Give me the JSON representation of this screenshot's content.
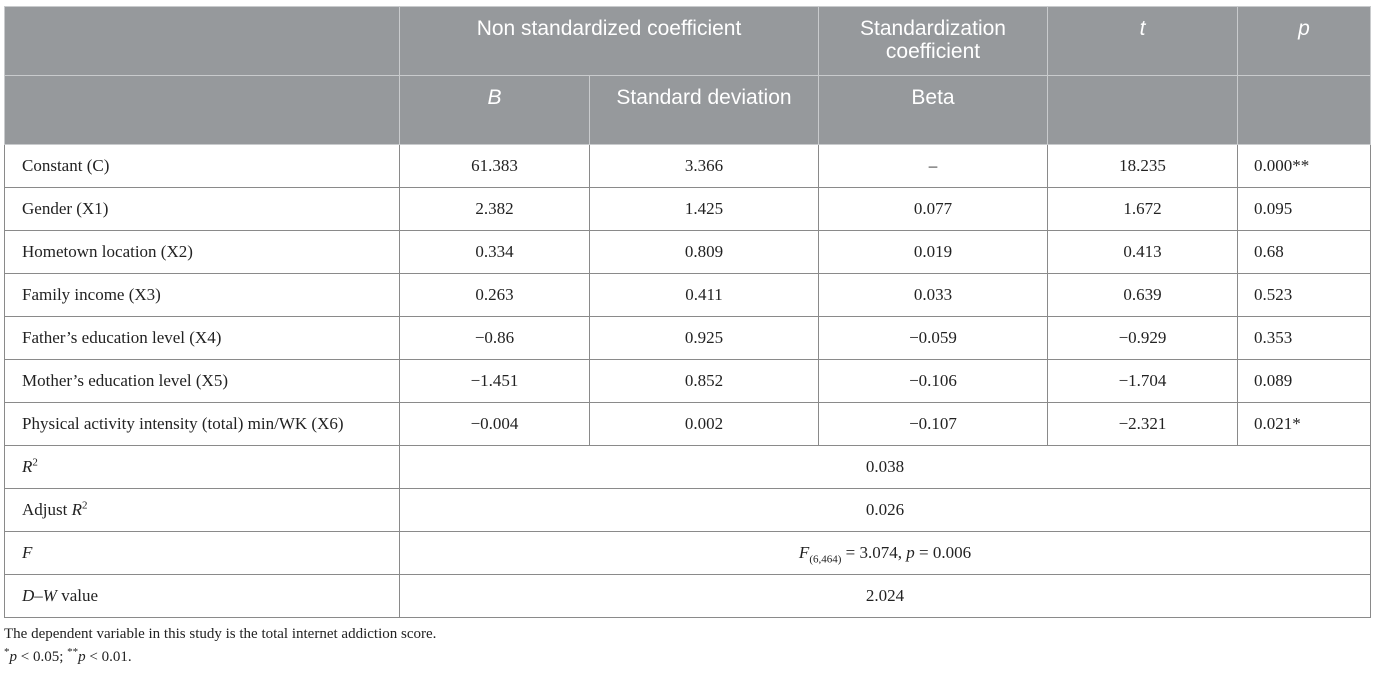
{
  "table": {
    "header": {
      "group1": "Non standardized coefficient",
      "group2": "Standardization coefficient",
      "t": "t",
      "p": "p",
      "b": "B",
      "std_dev": "Standard deviation",
      "beta": "Beta"
    },
    "rows": [
      {
        "label": "Constant (C)",
        "b": "61.383",
        "sd": "3.366",
        "beta": "–",
        "t": "18.235",
        "p": "0.000**"
      },
      {
        "label": "Gender (X1)",
        "b": "2.382",
        "sd": "1.425",
        "beta": "0.077",
        "t": "1.672",
        "p": "0.095"
      },
      {
        "label": "Hometown location (X2)",
        "b": "0.334",
        "sd": "0.809",
        "beta": "0.019",
        "t": "0.413",
        "p": "0.68"
      },
      {
        "label": "Family income (X3)",
        "b": "0.263",
        "sd": "0.411",
        "beta": "0.033",
        "t": "0.639",
        "p": "0.523"
      },
      {
        "label": "Father’s education level (X4)",
        "b": "−0.86",
        "sd": "0.925",
        "beta": "−0.059",
        "t": "−0.929",
        "p": "0.353"
      },
      {
        "label": "Mother’s education level (X5)",
        "b": "−1.451",
        "sd": "0.852",
        "beta": "−0.106",
        "t": "−1.704",
        "p": "0.089"
      },
      {
        "label": "Physical activity intensity (total) min/WK (X6)",
        "b": "−0.004",
        "sd": "0.002",
        "beta": "−0.107",
        "t": "−2.321",
        "p": "0.021*"
      }
    ],
    "summary": {
      "r2_label": "R",
      "r2_sup": "2",
      "r2_value": "0.038",
      "adj_label_prefix": "Adjust ",
      "adj_label_r": "R",
      "adj_label_sup": "2",
      "adj_value": "0.026",
      "f_label": "F",
      "f_value_f": "F",
      "f_value_sub": "(6,464)",
      "f_value_mid": " = 3.074, ",
      "f_value_p": "p",
      "f_value_end": " = 0.006",
      "dw_label_it": "D–W",
      "dw_label_rest": " value",
      "dw_value": "2.024"
    }
  },
  "notes": {
    "line1": "The dependent variable in this study is the total internet addiction score.",
    "line2_star1": "*",
    "line2_p1": "p",
    "line2_mid": " < 0.05; ",
    "line2_star2": "**",
    "line2_p2": "p",
    "line2_end": " < 0.01."
  },
  "colors": {
    "header_bg": "#96999c",
    "header_text": "#ffffff",
    "grid": "#8a8a8a"
  }
}
